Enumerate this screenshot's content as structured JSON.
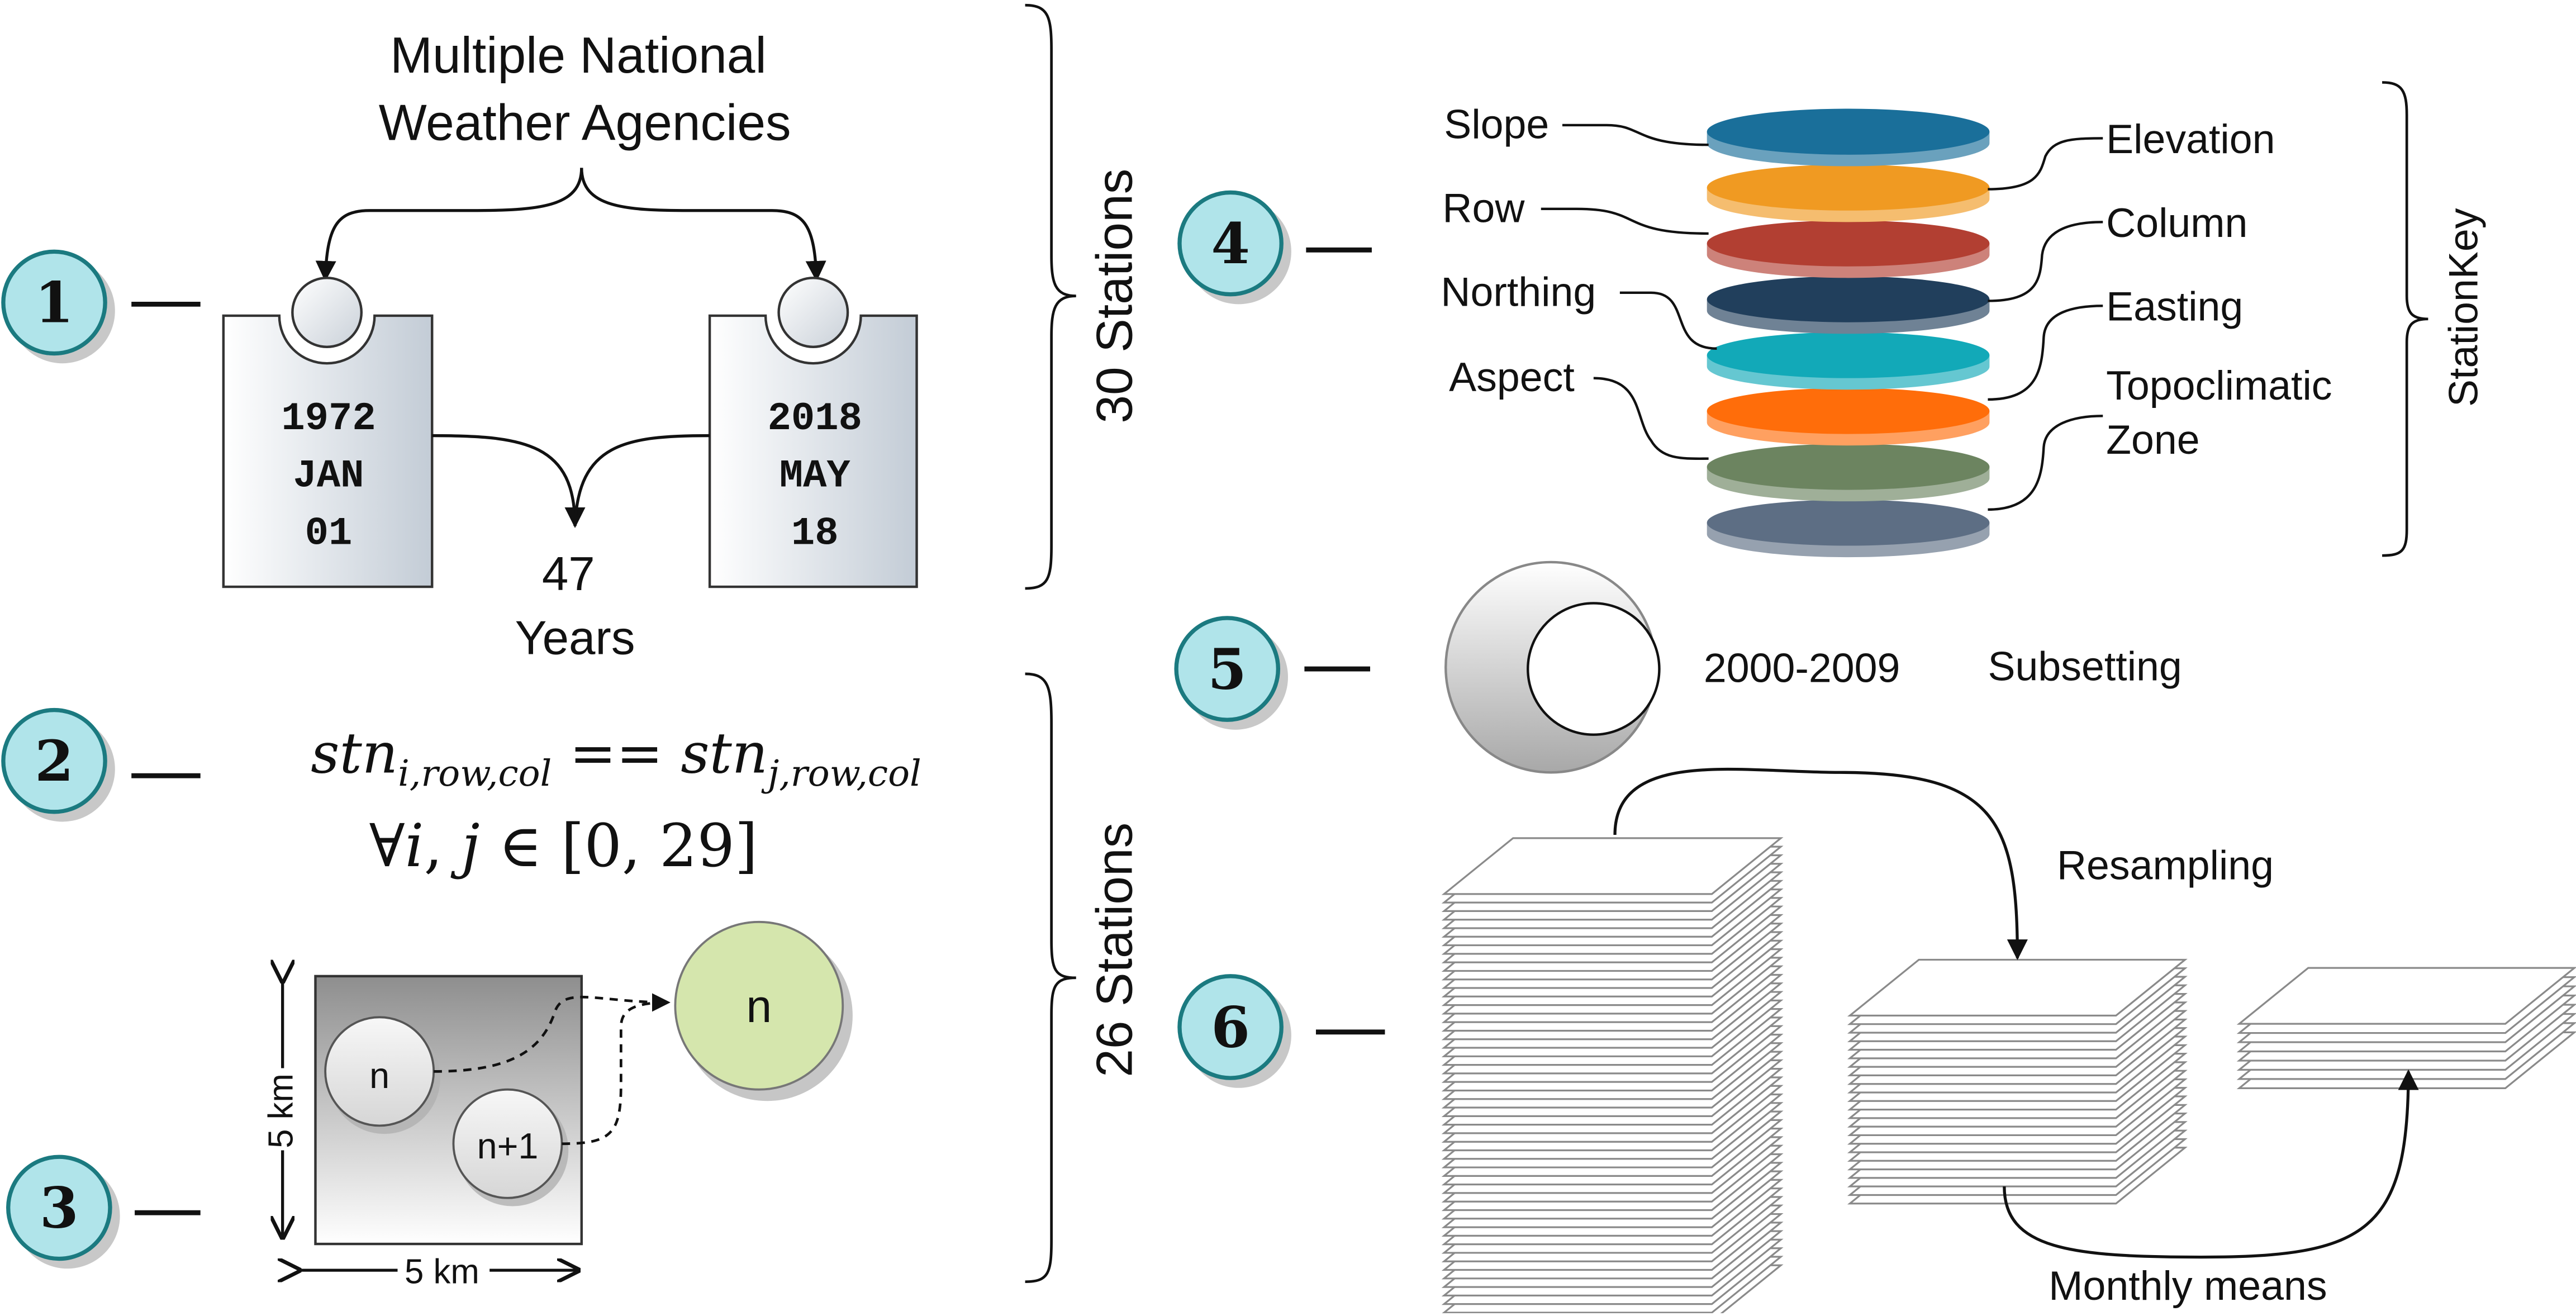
{
  "steps": [
    "1",
    "2",
    "3",
    "4",
    "5",
    "6"
  ],
  "step1": {
    "agencies_label_line1": "Multiple National",
    "agencies_label_line2": "Weather Agencies",
    "start": {
      "year": "1972",
      "month": "JAN",
      "day": "01"
    },
    "end": {
      "year": "2018",
      "month": "MAY",
      "day": "18"
    },
    "duration_number": "47",
    "duration_unit": "Years"
  },
  "step2": {
    "equation_line1": "stn_{i,row,col} == stn_{j,row,col}",
    "equation_line2": "∀i, j ∈ [0, 29]"
  },
  "step3": {
    "cell_height_label": "5 km",
    "cell_width_label": "5 km",
    "station_a": "n",
    "station_b": "n+1",
    "merged_station": "n"
  },
  "brackets": {
    "top_label": "30 Stations",
    "bottom_label": "26 Stations",
    "key_label": "StationKey"
  },
  "step4": {
    "layer_labels_left": [
      "Slope",
      "Row",
      "Northing",
      "Aspect"
    ],
    "layer_labels_right": [
      "Elevation",
      "Column",
      "Easting",
      "Topoclimatic",
      "Zone"
    ],
    "layer_colors": [
      "#1a6f9a",
      "#f09a22",
      "#b23f32",
      "#213f5c",
      "#12a9b8",
      "#ff6d0a",
      "#6c8460",
      "#5d6e84"
    ]
  },
  "step5": {
    "period": "2000-2009",
    "action": "Subsetting"
  },
  "step6": {
    "resampling_label": "Resampling",
    "monthly_means_label": "Monthly means"
  }
}
